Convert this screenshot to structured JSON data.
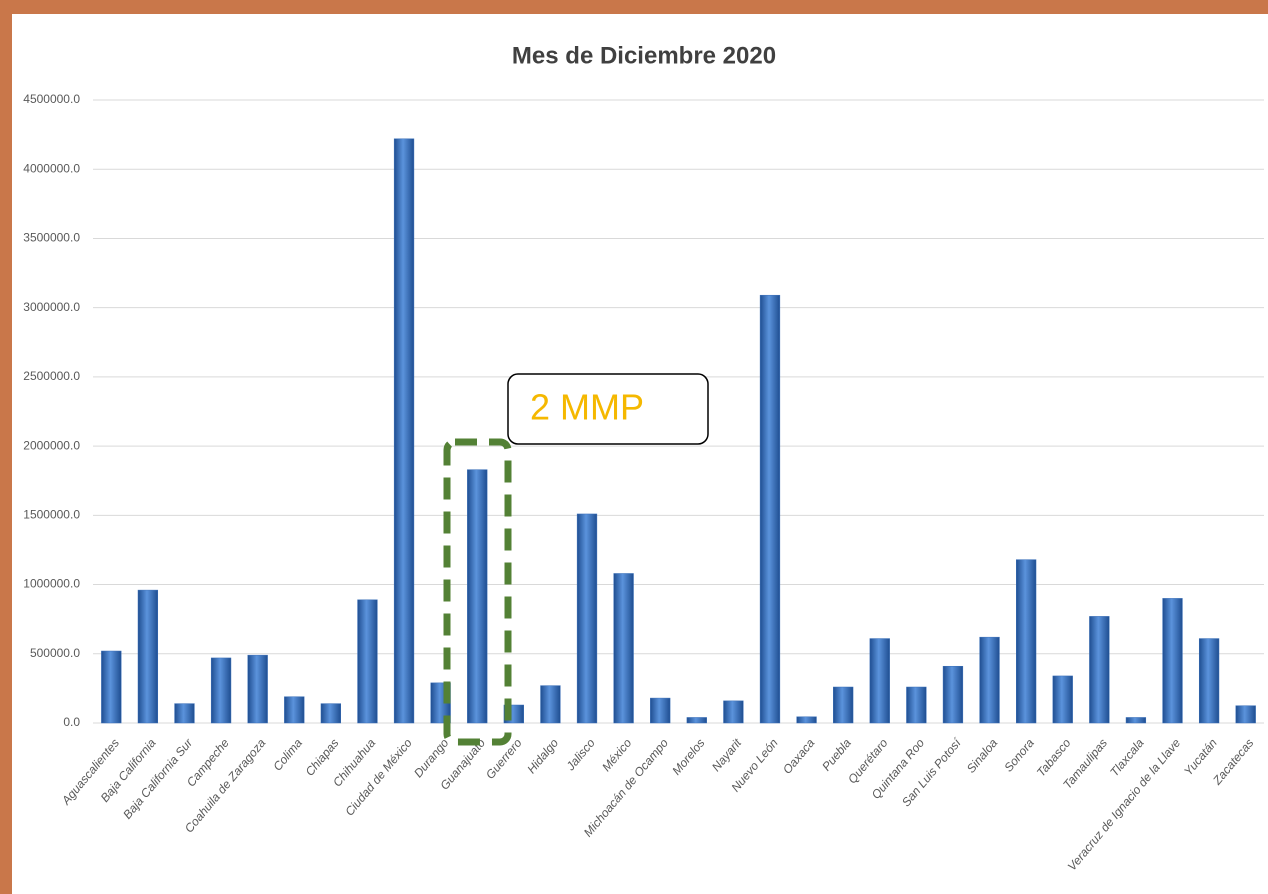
{
  "chart_data": {
    "type": "bar",
    "title": "Mes de Diciembre 2020",
    "categories": [
      "Aguascalientes",
      "Baja California",
      "Baja California Sur",
      "Campeche",
      "Coahuila de Zaragoza",
      "Colima",
      "Chiapas",
      "Chihuahua",
      "Ciudad de México",
      "Durango",
      "Guanajuato",
      "Guerrero",
      "Hidalgo",
      "Jalisco",
      "México",
      "Michoacán de Ocampo",
      "Morelos",
      "Nayarit",
      "Nuevo León",
      "Oaxaca",
      "Puebla",
      "Querétaro",
      "Quintana Roo",
      "San Luis Potosí",
      "Sinaloa",
      "Sonora",
      "Tabasco",
      "Tamaulipas",
      "Tlaxcala",
      "Veracruz de Ignacio de la Llave",
      "Yucatán",
      "Zacatecas"
    ],
    "values": [
      520000,
      960000,
      140000,
      470000,
      490000,
      190000,
      140000,
      890000,
      4220000,
      290000,
      1830000,
      130000,
      270000,
      1510000,
      1080000,
      180000,
      40000,
      160000,
      3090000,
      45000,
      260000,
      610000,
      260000,
      410000,
      620000,
      1180000,
      340000,
      770000,
      40000,
      900000,
      610000,
      125000
    ],
    "color": "#3a6fb8",
    "ylim": [
      0,
      4500000
    ],
    "yticks": [
      {
        "value": 0,
        "label": "0.0"
      },
      {
        "value": 500000,
        "label": "500000.0"
      },
      {
        "value": 1000000,
        "label": "1000000.0"
      },
      {
        "value": 1500000,
        "label": "1500000.0"
      },
      {
        "value": 2000000,
        "label": "2000000.0"
      },
      {
        "value": 2500000,
        "label": "2500000.0"
      },
      {
        "value": 3000000,
        "label": "3000000.0"
      },
      {
        "value": 3500000,
        "label": "3500000.0"
      },
      {
        "value": 4000000,
        "label": "4000000.0"
      },
      {
        "value": 4500000,
        "label": "4500000.0"
      }
    ],
    "grid": true,
    "annotation": "2 MMP"
  }
}
